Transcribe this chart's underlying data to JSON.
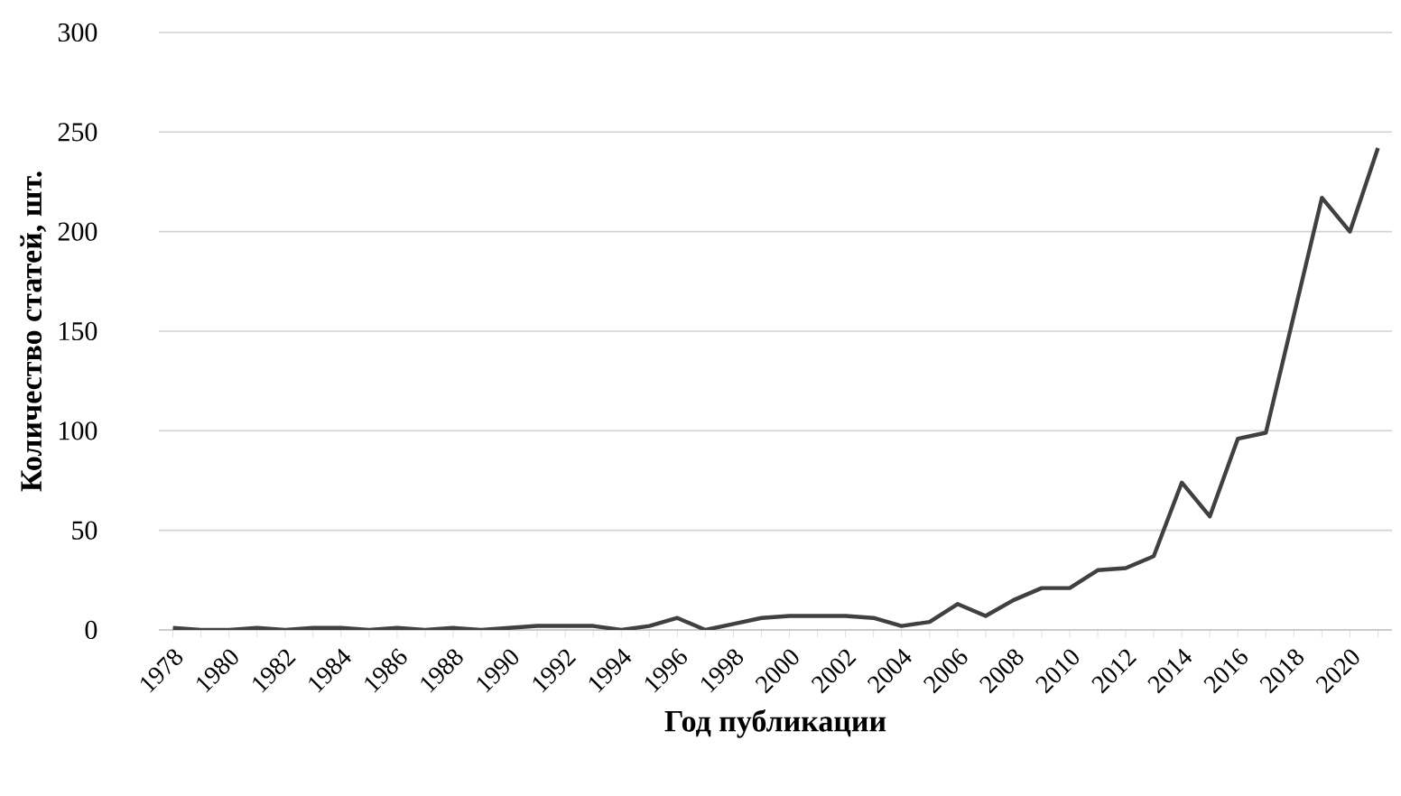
{
  "chart_data": {
    "type": "line",
    "xlabel": "Год публикации",
    "ylabel": "Количество статей, шт.",
    "categories": [
      "1978",
      null,
      "1980",
      null,
      "1982",
      null,
      "1984",
      null,
      "1986",
      null,
      "1988",
      null,
      "1990",
      null,
      "1992",
      null,
      "1994",
      null,
      "1996",
      null,
      "1998",
      null,
      "2000",
      null,
      "2002",
      null,
      "2004",
      null,
      "2006",
      null,
      "2008",
      null,
      "2010",
      null,
      "2012",
      null,
      "2014",
      null,
      "2016",
      null,
      "2018",
      null,
      "2020",
      null
    ],
    "series": [
      {
        "color": "#404040",
        "values": [
          1,
          0,
          0,
          1,
          0,
          1,
          1,
          0,
          1,
          0,
          1,
          0,
          1,
          2,
          2,
          2,
          0,
          2,
          6,
          0,
          3,
          6,
          7,
          7,
          7,
          6,
          2,
          4,
          13,
          7,
          15,
          21,
          21,
          30,
          31,
          37,
          74,
          57,
          96,
          99,
          158,
          217,
          200,
          242
        ]
      }
    ],
    "ylim": [
      0,
      300
    ],
    "yticks": [
      0,
      50,
      100,
      150,
      200,
      250,
      300
    ],
    "grid": "y",
    "marker": "none",
    "line_style": "solid"
  }
}
